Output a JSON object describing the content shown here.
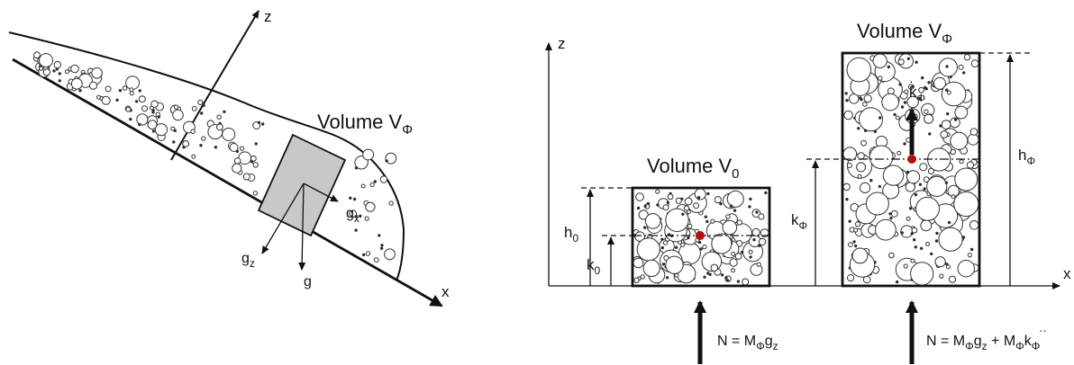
{
  "left_panel": {
    "axis_z": "z",
    "axis_x": "x",
    "volume_label": "Volume V",
    "volume_sub": "Φ",
    "g": "g",
    "g_x": "g",
    "g_x_sub": "x",
    "g_z": "g",
    "g_z_sub": "z"
  },
  "right_panel": {
    "axis_z": "z",
    "axis_x": "x",
    "volume0_label": "Volume V",
    "volume0_sub": "0",
    "volumephi_label": "Volume V",
    "volumephi_sub": "Φ",
    "h0": "h",
    "h0_sub": "0",
    "k0": "k",
    "k0_sub": "0",
    "hphi": "h",
    "hphi_sub": "Φ",
    "kphi": "k",
    "kphi_sub": "Φ",
    "kdot_sub": "Φ",
    "kdot_symbol": "k",
    "force_left": "N = M",
    "force_left_sub": "Φ",
    "force_left_tail": "g",
    "force_left_tail_sub": "z",
    "force_right": "N = M",
    "force_right_sub1": "Φ",
    "force_right_mid": "g",
    "force_right_mid_sub": "z",
    "force_right_plus": " + M",
    "force_right_sub2": "Φ",
    "force_right_kdd": "k",
    "force_right_sub3": "Φ",
    "dot_color": "#b01010"
  }
}
